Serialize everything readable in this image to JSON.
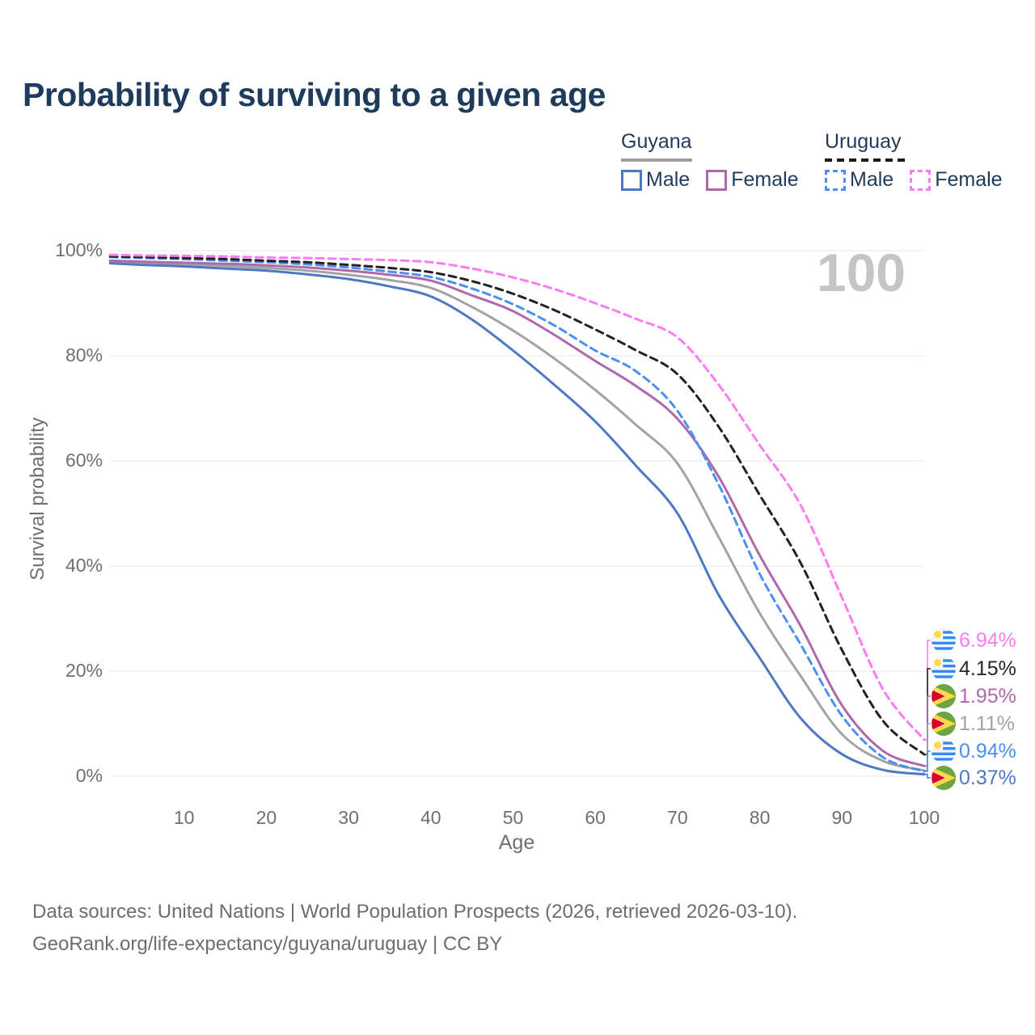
{
  "title": "Probability of surviving to a given age",
  "watermark": "100",
  "legend": {
    "groups": [
      {
        "name": "Guyana",
        "underline_style": "solid",
        "underline_color": "#9e9e9e",
        "items": [
          {
            "label": "Male",
            "color": "#4d78c4",
            "dashed": false
          },
          {
            "label": "Female",
            "color": "#ae68ac",
            "dashed": false
          }
        ]
      },
      {
        "name": "Uruguay",
        "underline_style": "dashed",
        "underline_color": "#1b1b1b",
        "items": [
          {
            "label": "Male",
            "color": "#4b90f0",
            "dashed": true
          },
          {
            "label": "Female",
            "color": "#fb7cf0",
            "dashed": true
          }
        ]
      }
    ]
  },
  "axes": {
    "x_label": "Age",
    "y_label": "Survival probability",
    "x_ticks": [
      10,
      20,
      30,
      40,
      50,
      60,
      70,
      80,
      90,
      100
    ],
    "y_ticks": [
      {
        "label": "0%",
        "value": 0
      },
      {
        "label": "20%",
        "value": 20
      },
      {
        "label": "40%",
        "value": 40
      },
      {
        "label": "60%",
        "value": 60
      },
      {
        "label": "80%",
        "value": 80
      },
      {
        "label": "100%",
        "value": 100
      }
    ]
  },
  "chart_data": {
    "type": "line",
    "title": "Probability of surviving to a given age",
    "xlabel": "Age",
    "ylabel": "Survival probability",
    "xlim": [
      1,
      100
    ],
    "ylim": [
      0,
      100
    ],
    "grid": "horizontal",
    "ages": [
      1,
      5,
      10,
      15,
      20,
      25,
      30,
      35,
      40,
      45,
      50,
      55,
      60,
      65,
      70,
      75,
      80,
      85,
      90,
      95,
      100
    ],
    "series": [
      {
        "name": "Guyana (both sexes)",
        "country": "Guyana",
        "sex": "Both",
        "color": "#a3a3a3",
        "dashed": false,
        "values": [
          97.9,
          97.7,
          97.4,
          97.1,
          96.7,
          96.2,
          95.4,
          94.4,
          92.9,
          89.3,
          84.8,
          79.5,
          73.5,
          66.8,
          59.5,
          45.5,
          31,
          19,
          8,
          2.9,
          1.11
        ]
      },
      {
        "name": "Guyana Male",
        "country": "Guyana",
        "sex": "Male",
        "color": "#4d78c4",
        "dashed": false,
        "values": [
          97.6,
          97.3,
          97.0,
          96.6,
          96.2,
          95.5,
          94.6,
          93.2,
          91.3,
          86.9,
          81,
          74.5,
          67.5,
          59,
          50,
          34.5,
          22.5,
          11,
          4.2,
          1.2,
          0.37
        ]
      },
      {
        "name": "Guyana Female",
        "country": "Guyana",
        "sex": "Female",
        "color": "#ae68ac",
        "dashed": false,
        "values": [
          98.1,
          97.9,
          97.7,
          97.5,
          97.2,
          96.8,
          96.2,
          95.4,
          94.3,
          91.5,
          88.5,
          84,
          79,
          74.2,
          68,
          57,
          42,
          28.5,
          13.5,
          4.8,
          1.95
        ]
      },
      {
        "name": "Uruguay Male",
        "country": "Uruguay",
        "sex": "Male",
        "color": "#4b90f0",
        "dashed": true,
        "values": [
          98.8,
          98.6,
          98.4,
          98.1,
          97.8,
          97.4,
          96.8,
          96.0,
          95.0,
          92.8,
          89.8,
          85.8,
          81,
          77,
          69.5,
          55.5,
          38.5,
          25,
          11.5,
          3.6,
          0.94
        ]
      },
      {
        "name": "Uruguay (both sexes)",
        "country": "Uruguay",
        "sex": "Both",
        "color": "#222222",
        "dashed": true,
        "values": [
          98.9,
          98.8,
          98.6,
          98.4,
          98.1,
          97.8,
          97.3,
          96.7,
          95.9,
          94.2,
          91.8,
          88.7,
          85,
          81,
          76.5,
          66.5,
          53.5,
          40.5,
          24,
          10.5,
          4.15
        ]
      },
      {
        "name": "Uruguay Female",
        "country": "Uruguay",
        "sex": "Female",
        "color": "#fb7cf0",
        "dashed": true,
        "values": [
          99.2,
          99.1,
          99.0,
          98.9,
          98.7,
          98.6,
          98.4,
          98.2,
          97.8,
          96.6,
          94.9,
          92.7,
          90,
          87,
          83.5,
          74.5,
          63,
          51.5,
          34,
          16.5,
          6.94
        ]
      }
    ],
    "end_labels": [
      {
        "label": "6.94%",
        "value": 6.94,
        "series": "Uruguay Female",
        "flag": "uruguay",
        "color": "#fb7cf0"
      },
      {
        "label": "4.15%",
        "value": 4.15,
        "series": "Uruguay (both sexes)",
        "flag": "uruguay",
        "color": "#262626"
      },
      {
        "label": "1.95%",
        "value": 1.95,
        "series": "Guyana Female",
        "flag": "guyana",
        "color": "#ae68ac"
      },
      {
        "label": "1.11%",
        "value": 1.11,
        "series": "Guyana (both sexes)",
        "flag": "guyana",
        "color": "#a3a3a3"
      },
      {
        "label": "0.94%",
        "value": 0.94,
        "series": "Uruguay Male",
        "flag": "uruguay",
        "color": "#4b90f0"
      },
      {
        "label": "0.37%",
        "value": 0.37,
        "series": "Guyana Male",
        "flag": "guyana",
        "color": "#4d78c4"
      }
    ],
    "legend_position": "top-right"
  },
  "footer": {
    "line1": "Data sources: United Nations | World Population Prospects (2026, retrieved 2026-03-10).",
    "line2": "GeoRank.org/life-expectancy/guyana/uruguay | CC BY"
  }
}
